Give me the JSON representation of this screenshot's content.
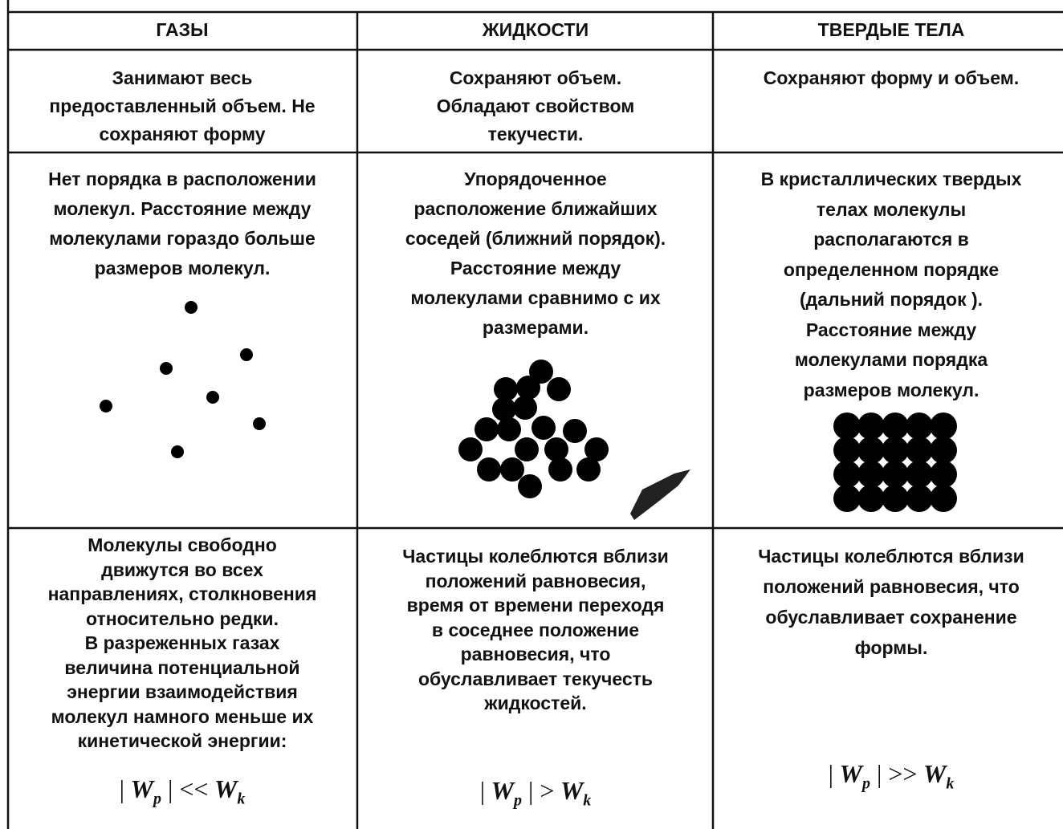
{
  "table": {
    "header": [
      "ГАЗЫ",
      "ЖИДКОСТИ",
      "ТВЕРДЫЕ ТЕЛА"
    ],
    "rows": [
      {
        "cells": [
          {
            "lines": [
              "Занимают весь",
              "предоставленный объем. Не",
              "сохраняют форму"
            ]
          },
          {
            "lines": [
              "Сохраняют объем.",
              "Обладают свойством",
              "текучести."
            ]
          },
          {
            "lines": [
              "Сохраняют форму и объем."
            ]
          }
        ]
      },
      {
        "cells": [
          {
            "lines": [
              "Нет порядка в расположении",
              "молекул. Расстояние между",
              "молекулами гораздо больше",
              "размеров молекул."
            ]
          },
          {
            "lines": [
              "Упорядоченное",
              "расположение ближайших",
              "соседей (ближний порядок).",
              "Расстояние между",
              "молекулами сравнимо с их",
              "размерами."
            ]
          },
          {
            "lines": [
              "В кристаллических твердых",
              "телах молекулы",
              "располагаются в",
              "определенном порядке",
              "(дальний порядок ).",
              "Расстояние между",
              "молекулами порядка",
              "размеров молекул."
            ]
          }
        ]
      },
      {
        "cells": [
          {
            "lines": [
              "Молекулы свободно",
              "движутся во всех",
              "направлениях, столкновения",
              "относительно редки.",
              "В разреженных газах",
              "величина потенциальной",
              "энергии взаимодействия",
              "молекул намного меньше их",
              "кинетической энергии:"
            ],
            "formula": {
              "bar": "|",
              "lhs": "W",
              "lhs_sub": "p",
              "op": "<<",
              "rhs": "W",
              "rhs_sub": "k"
            }
          },
          {
            "lines": [
              "Частицы колеблются вблизи",
              "положений равновесия,",
              "время от времени переходя",
              "в соседнее положение",
              "равновесия, что",
              "обуславливает текучесть",
              "жидкостей."
            ],
            "formula": {
              "bar": "|",
              "lhs": "W",
              "lhs_sub": "p",
              "op": ">",
              "rhs": "W",
              "rhs_sub": "k"
            }
          },
          {
            "lines": [
              "Частицы колеблются вблизи",
              "положений равновесия, что",
              "обуславливает сохранение",
              "формы."
            ],
            "formula": {
              "bar": "|",
              "lhs": "W",
              "lhs_sub": "p",
              "op": ">>",
              "rhs": "W",
              "rhs_sub": "k"
            }
          }
        ]
      }
    ]
  }
}
